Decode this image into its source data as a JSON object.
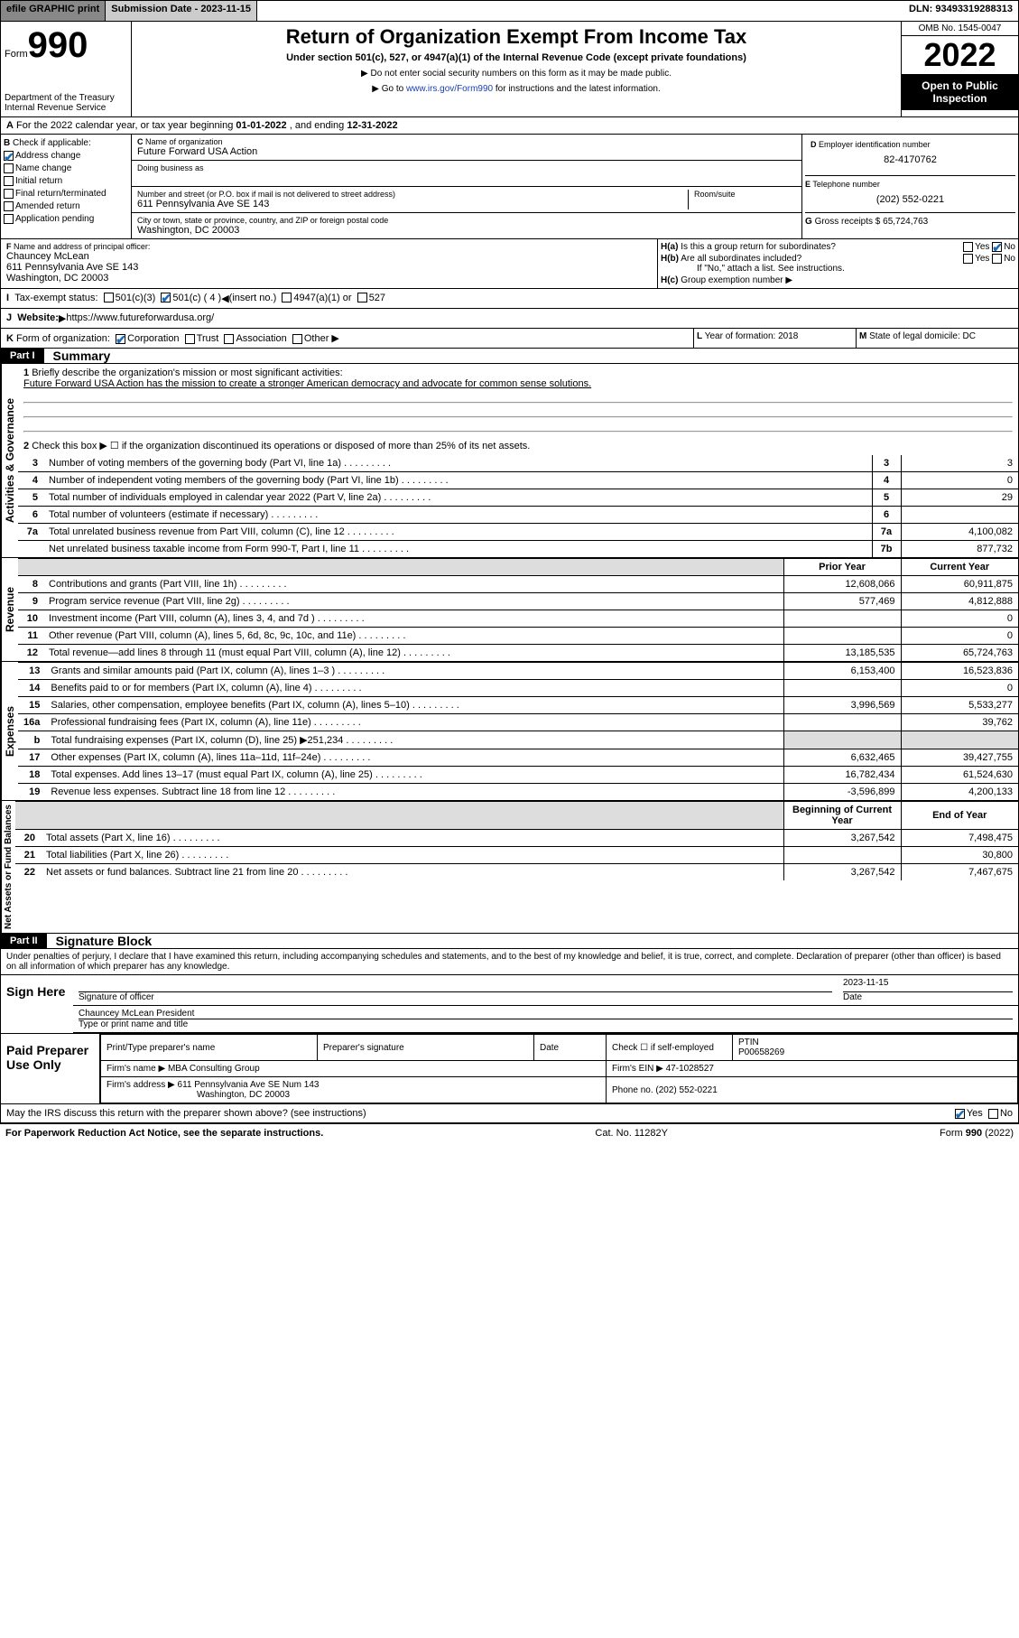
{
  "top_bar": {
    "efile": "efile GRAPHIC print",
    "submission_label": "Submission Date - 2023-11-15",
    "dln": "DLN: 93493319288313"
  },
  "header": {
    "form_label": "Form",
    "form_number": "990",
    "dept": "Department of the Treasury",
    "irs": "Internal Revenue Service",
    "title": "Return of Organization Exempt From Income Tax",
    "subtitle": "Under section 501(c), 527, or 4947(a)(1) of the Internal Revenue Code (except private foundations)",
    "note1": "Do not enter social security numbers on this form as it may be made public.",
    "note2_prefix": "Go to ",
    "note2_link": "www.irs.gov/Form990",
    "note2_suffix": " for instructions and the latest information.",
    "omb": "OMB No. 1545-0047",
    "year": "2022",
    "open_public": "Open to Public Inspection"
  },
  "lineA": {
    "text_prefix": "For the 2022 calendar year, or tax year beginning ",
    "begin": "01-01-2022",
    "mid": " , and ending ",
    "end": "12-31-2022"
  },
  "boxB": {
    "label": "Check if applicable:",
    "items": [
      "Address change",
      "Name change",
      "Initial return",
      "Final return/terminated",
      "Amended return",
      "Application pending"
    ],
    "checked_index": 0,
    "prefix": "B"
  },
  "boxC": {
    "name_label": "Name of organization",
    "name": "Future Forward USA Action",
    "dba_label": "Doing business as",
    "addr_label": "Number and street (or P.O. box if mail is not delivered to street address)",
    "room_label": "Room/suite",
    "addr": "611 Pennsylvania Ave SE 143",
    "city_label": "City or town, state or province, country, and ZIP or foreign postal code",
    "city": "Washington, DC  20003",
    "prefix": "C"
  },
  "boxD": {
    "label": "Employer identification number",
    "value": "82-4170762",
    "prefix": "D"
  },
  "boxE": {
    "label": "Telephone number",
    "value": "(202) 552-0221",
    "prefix": "E"
  },
  "boxG": {
    "label": "Gross receipts $",
    "value": "65,724,763",
    "prefix": "G"
  },
  "boxF": {
    "label": "Name and address of principal officer:",
    "name": "Chauncey McLean",
    "addr1": "611 Pennsylvania Ave SE 143",
    "addr2": "Washington, DC  20003",
    "prefix": "F"
  },
  "boxH": {
    "a_label": "Is this a group return for subordinates?",
    "a_prefix": "H(a)",
    "b_label": "Are all subordinates included?",
    "b_prefix": "H(b)",
    "b_note": "If \"No,\" attach a list. See instructions.",
    "c_label": "Group exemption number",
    "c_prefix": "H(c)",
    "yes": "Yes",
    "no": "No"
  },
  "boxI": {
    "label": "Tax-exempt status:",
    "opt1": "501(c)(3)",
    "opt2": "501(c) ( 4 )",
    "insert": "(insert no.)",
    "opt3": "4947(a)(1) or",
    "opt4": "527",
    "prefix": "I"
  },
  "boxJ": {
    "label": "Website:",
    "value": "https://www.futureforwardusa.org/",
    "prefix": "J"
  },
  "boxK": {
    "label": "Form of organization:",
    "opts": [
      "Corporation",
      "Trust",
      "Association",
      "Other"
    ],
    "checked_index": 0,
    "prefix": "K"
  },
  "boxL": {
    "label": "Year of formation:",
    "value": "2018",
    "prefix": "L"
  },
  "boxM": {
    "label": "State of legal domicile:",
    "value": "DC",
    "prefix": "M"
  },
  "part1": {
    "label": "Part I",
    "title": "Summary",
    "sections": {
      "activities": "Activities & Governance",
      "revenue": "Revenue",
      "expenses": "Expenses",
      "net": "Net Assets or Fund Balances"
    },
    "line1_label": "Briefly describe the organization's mission or most significant activities:",
    "line1_text": "Future Forward USA Action has the mission to create a stronger American democracy and advocate for common sense solutions.",
    "line2_label": "Check this box ▶ ☐ if the organization discontinued its operations or disposed of more than 25% of its net assets.",
    "lines_gov": [
      {
        "n": "3",
        "desc": "Number of voting members of the governing body (Part VI, line 1a)",
        "box": "3",
        "val": "3"
      },
      {
        "n": "4",
        "desc": "Number of independent voting members of the governing body (Part VI, line 1b)",
        "box": "4",
        "val": "0"
      },
      {
        "n": "5",
        "desc": "Total number of individuals employed in calendar year 2022 (Part V, line 2a)",
        "box": "5",
        "val": "29"
      },
      {
        "n": "6",
        "desc": "Total number of volunteers (estimate if necessary)",
        "box": "6",
        "val": ""
      },
      {
        "n": "7a",
        "desc": "Total unrelated business revenue from Part VIII, column (C), line 12",
        "box": "7a",
        "val": "4,100,082"
      },
      {
        "n": "",
        "desc": "Net unrelated business taxable income from Form 990-T, Part I, line 11",
        "box": "7b",
        "val": "877,732"
      }
    ],
    "col_headers": {
      "prior": "Prior Year",
      "current": "Current Year",
      "begin": "Beginning of Current Year",
      "end": "End of Year"
    },
    "lines_rev": [
      {
        "n": "8",
        "desc": "Contributions and grants (Part VIII, line 1h)",
        "prior": "12,608,066",
        "curr": "60,911,875"
      },
      {
        "n": "9",
        "desc": "Program service revenue (Part VIII, line 2g)",
        "prior": "577,469",
        "curr": "4,812,888"
      },
      {
        "n": "10",
        "desc": "Investment income (Part VIII, column (A), lines 3, 4, and 7d )",
        "prior": "",
        "curr": "0"
      },
      {
        "n": "11",
        "desc": "Other revenue (Part VIII, column (A), lines 5, 6d, 8c, 9c, 10c, and 11e)",
        "prior": "",
        "curr": "0"
      },
      {
        "n": "12",
        "desc": "Total revenue—add lines 8 through 11 (must equal Part VIII, column (A), line 12)",
        "prior": "13,185,535",
        "curr": "65,724,763"
      }
    ],
    "lines_exp": [
      {
        "n": "13",
        "desc": "Grants and similar amounts paid (Part IX, column (A), lines 1–3 )",
        "prior": "6,153,400",
        "curr": "16,523,836"
      },
      {
        "n": "14",
        "desc": "Benefits paid to or for members (Part IX, column (A), line 4)",
        "prior": "",
        "curr": "0"
      },
      {
        "n": "15",
        "desc": "Salaries, other compensation, employee benefits (Part IX, column (A), lines 5–10)",
        "prior": "3,996,569",
        "curr": "5,533,277"
      },
      {
        "n": "16a",
        "desc": "Professional fundraising fees (Part IX, column (A), line 11e)",
        "prior": "",
        "curr": "39,762"
      },
      {
        "n": "b",
        "desc": "Total fundraising expenses (Part IX, column (D), line 25) ▶251,234",
        "prior": "shaded",
        "curr": "shaded"
      },
      {
        "n": "17",
        "desc": "Other expenses (Part IX, column (A), lines 11a–11d, 11f–24e)",
        "prior": "6,632,465",
        "curr": "39,427,755"
      },
      {
        "n": "18",
        "desc": "Total expenses. Add lines 13–17 (must equal Part IX, column (A), line 25)",
        "prior": "16,782,434",
        "curr": "61,524,630"
      },
      {
        "n": "19",
        "desc": "Revenue less expenses. Subtract line 18 from line 12",
        "prior": "-3,596,899",
        "curr": "4,200,133"
      }
    ],
    "lines_net": [
      {
        "n": "20",
        "desc": "Total assets (Part X, line 16)",
        "prior": "3,267,542",
        "curr": "7,498,475"
      },
      {
        "n": "21",
        "desc": "Total liabilities (Part X, line 26)",
        "prior": "",
        "curr": "30,800"
      },
      {
        "n": "22",
        "desc": "Net assets or fund balances. Subtract line 21 from line 20",
        "prior": "3,267,542",
        "curr": "7,467,675"
      }
    ]
  },
  "part2": {
    "label": "Part II",
    "title": "Signature Block",
    "perjury": "Under penalties of perjury, I declare that I have examined this return, including accompanying schedules and statements, and to the best of my knowledge and belief, it is true, correct, and complete. Declaration of preparer (other than officer) is based on all information of which preparer has any knowledge.",
    "sign_here": "Sign Here",
    "sig_officer_label": "Signature of officer",
    "date_label": "Date",
    "sig_date": "2023-11-15",
    "officer_name": "Chauncey McLean  President",
    "officer_type_label": "Type or print name and title",
    "paid": "Paid Preparer Use Only",
    "prep_name_label": "Print/Type preparer's name",
    "prep_sig_label": "Preparer's signature",
    "prep_date_label": "Date",
    "self_emp": "Check ☐ if self-employed",
    "ptin_label": "PTIN",
    "ptin": "P00658269",
    "firm_name_label": "Firm's name ▶",
    "firm_name": "MBA Consulting Group",
    "firm_ein_label": "Firm's EIN ▶",
    "firm_ein": "47-1028527",
    "firm_addr_label": "Firm's address ▶",
    "firm_addr": "611 Pennsylvania Ave SE Num 143",
    "firm_city": "Washington, DC  20003",
    "phone_label": "Phone no.",
    "phone": "(202) 552-0221",
    "discuss": "May the IRS discuss this return with the preparer shown above? (see instructions)"
  },
  "footer": {
    "pra": "For Paperwork Reduction Act Notice, see the separate instructions.",
    "cat": "Cat. No. 11282Y",
    "form": "Form 990 (2022)"
  }
}
